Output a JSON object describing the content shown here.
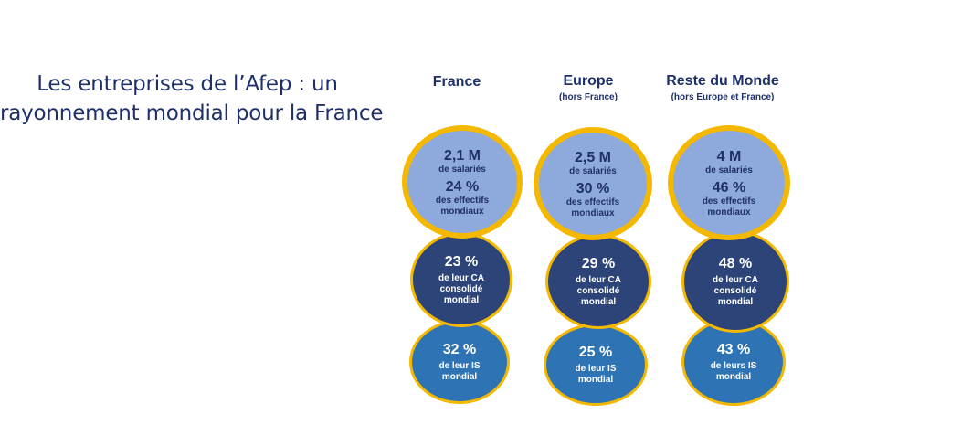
{
  "title": {
    "line1": "Les entreprises de l’Afep : un",
    "line2": "rayonnement mondial pour la France"
  },
  "columns": [
    {
      "name": "France",
      "sub": "",
      "employees": {
        "value": "2,1 M",
        "label": "de salariés"
      },
      "workforce": {
        "value": "24 %",
        "label1": "des effectifs",
        "label2": "mondiaux"
      },
      "revenue": {
        "value": "23 %",
        "label1": "de leur CA",
        "label2": "consolidé",
        "label3": "mondial"
      },
      "tax": {
        "value": "32 %",
        "label1": "de leur IS",
        "label2": "mondial"
      }
    },
    {
      "name": "Europe",
      "sub": "(hors France)",
      "employees": {
        "value": "2,5 M",
        "label": "de salariés"
      },
      "workforce": {
        "value": "30 %",
        "label1": "des effectifs",
        "label2": "mondiaux"
      },
      "revenue": {
        "value": "29 %",
        "label1": "de leur CA",
        "label2": "consolidé",
        "label3": "mondial"
      },
      "tax": {
        "value": "25 %",
        "label1": "de leur IS",
        "label2": "mondial"
      }
    },
    {
      "name": "Reste du Monde",
      "sub": "(hors Europe et France)",
      "employees": {
        "value": "4 M",
        "label": "de salariés"
      },
      "workforce": {
        "value": "46 %",
        "label1": "des effectifs",
        "label2": "mondiaux"
      },
      "revenue": {
        "value": "48 %",
        "label1": "de leur CA",
        "label2": "consolidé",
        "label3": "mondial"
      },
      "tax": {
        "value": "43 %",
        "label1": "de leurs IS",
        "label2": "mondial"
      }
    }
  ],
  "colors": {
    "title": "#1f3068",
    "top_fill": "#8eaadc",
    "mid_fill": "#2c4478",
    "bottom_fill": "#2e74b5",
    "ring": "#f5b800"
  }
}
